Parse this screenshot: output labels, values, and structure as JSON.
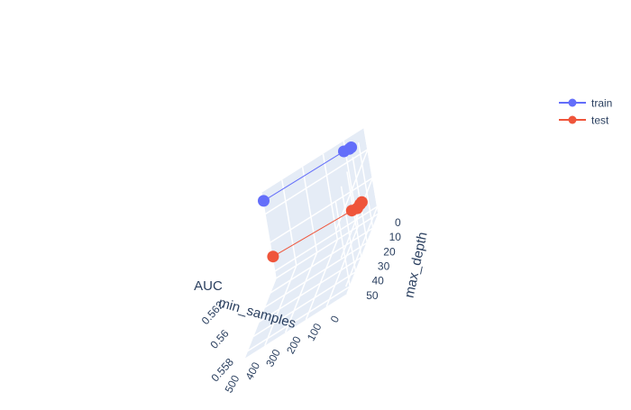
{
  "chart_data": {
    "type": "scatter3d",
    "title": "",
    "axes": {
      "x": {
        "label": "max_depth",
        "ticks": [
          0,
          10,
          20,
          30,
          40,
          50
        ],
        "range": [
          0,
          55
        ]
      },
      "y": {
        "label": "min_samples",
        "ticks": [
          0,
          100,
          200,
          300,
          400,
          500
        ],
        "range": [
          0,
          500
        ]
      },
      "z": {
        "label": "AUC",
        "ticks": [
          0.558,
          0.56,
          0.562
        ],
        "range": [
          0.5575,
          0.5635
        ]
      }
    },
    "legend": {
      "placement": "top-right"
    },
    "series": [
      {
        "name": "train",
        "color": "#636efa",
        "mode": "lines+markers",
        "points": [
          {
            "max_depth": 0.0,
            "min_samples": 496,
            "AUC": 0.5629
          },
          {
            "max_depth": 1.0,
            "min_samples": 103,
            "AUC": 0.5629
          },
          {
            "max_depth": 0.5,
            "min_samples": 79,
            "AUC": 0.5628
          },
          {
            "max_depth": 0.1,
            "min_samples": 71,
            "AUC": 0.5628
          }
        ]
      },
      {
        "name": "test",
        "color": "#ef553b",
        "mode": "lines+markers",
        "points": [
          {
            "max_depth": 0.0,
            "min_samples": 496,
            "AUC": 0.559
          },
          {
            "max_depth": 3.5,
            "min_samples": 103,
            "AUC": 0.559
          },
          {
            "max_depth": 3.0,
            "min_samples": 79,
            "AUC": 0.5589
          },
          {
            "max_depth": 1.0,
            "min_samples": 71,
            "AUC": 0.5589
          },
          {
            "max_depth": 0.0,
            "min_samples": 65,
            "AUC": 0.5589
          }
        ]
      }
    ]
  }
}
